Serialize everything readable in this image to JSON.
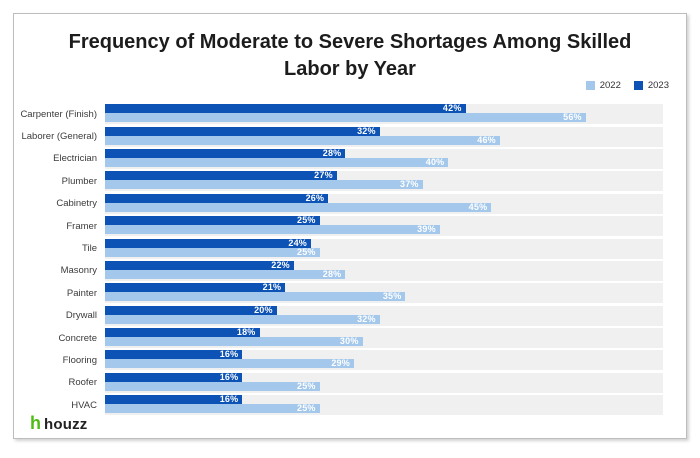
{
  "chart_data": {
    "type": "bar",
    "orientation": "horizontal",
    "title": "Frequency of Moderate to Severe Shortages Among Skilled Labor by Year",
    "categories": [
      "Carpenter (Finish)",
      "Laborer (General)",
      "Electrician",
      "Plumber",
      "Cabinetry",
      "Framer",
      "Tile",
      "Masonry",
      "Painter",
      "Drywall",
      "Concrete",
      "Flooring",
      "Roofer",
      "HVAC"
    ],
    "series": [
      {
        "name": "2022",
        "color": "#a4c8ec",
        "values": [
          56,
          46,
          40,
          37,
          45,
          39,
          25,
          28,
          35,
          32,
          30,
          29,
          25,
          25
        ]
      },
      {
        "name": "2023",
        "color": "#0d52b5",
        "values": [
          42,
          32,
          28,
          27,
          26,
          25,
          24,
          22,
          21,
          20,
          18,
          16,
          16,
          16
        ]
      }
    ],
    "bars_top_to_bottom": [
      "2023",
      "2022"
    ],
    "value_suffix": "%",
    "xlim": [
      0,
      65
    ],
    "grid": false,
    "legend_position": "top-right",
    "track_color": "#f0f0f0",
    "value_label_color": "#ffffff"
  },
  "footer": {
    "brand": "houzz",
    "brand_icon_color": "#4dbc15"
  }
}
